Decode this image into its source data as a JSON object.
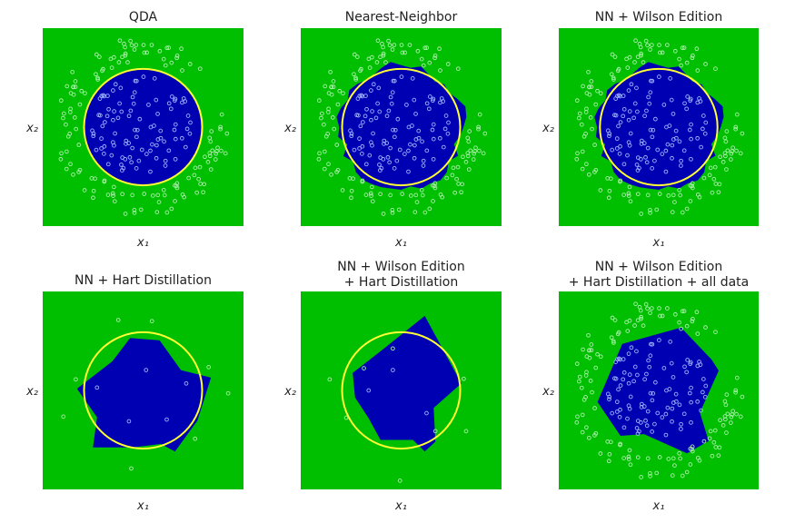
{
  "figure": {
    "colors": {
      "outer_region": "#00bf00",
      "inner_region": "#0000b3",
      "boundary": "#ffff33",
      "inner_points": "#9db4ff",
      "outer_points": "#a8f0a8"
    }
  },
  "chart_data": [
    {
      "type": "scatter",
      "title": "QDA",
      "xlabel": "x₁",
      "ylabel": "x₂",
      "region": "circle",
      "true_boundary": {
        "shape": "circle",
        "center": [
          0,
          0
        ],
        "radius": 1.0
      },
      "point_set": "all",
      "xlim": [
        -1.7,
        1.7
      ],
      "ylim": [
        -1.7,
        1.7
      ],
      "grid": false
    },
    {
      "type": "scatter",
      "title": "Nearest-Neighbor",
      "xlabel": "x₁",
      "ylabel": "x₂",
      "region": "nn_full",
      "true_boundary": {
        "shape": "circle",
        "center": [
          0,
          0
        ],
        "radius": 1.0
      },
      "point_set": "all",
      "xlim": [
        -1.7,
        1.7
      ],
      "ylim": [
        -1.7,
        1.7
      ],
      "grid": false
    },
    {
      "type": "scatter",
      "title": "NN + Wilson Edition",
      "xlabel": "x₁",
      "ylabel": "x₂",
      "region": "nn_full",
      "true_boundary": {
        "shape": "circle",
        "center": [
          0,
          0
        ],
        "radius": 1.0
      },
      "point_set": "all",
      "xlim": [
        -1.7,
        1.7
      ],
      "ylim": [
        -1.7,
        1.7
      ],
      "grid": false
    },
    {
      "type": "scatter",
      "title": "NN + Hart Distillation",
      "xlabel": "x₁",
      "ylabel": "x₂",
      "region": "hart",
      "true_boundary": {
        "shape": "circle",
        "center": [
          0,
          0
        ],
        "radius": 1.0
      },
      "point_set": "hart",
      "xlim": [
        -1.7,
        1.7
      ],
      "ylim": [
        -1.7,
        1.7
      ],
      "grid": false
    },
    {
      "type": "scatter",
      "title": "NN + Wilson Edition\n+ Hart Distillation",
      "xlabel": "x₁",
      "ylabel": "x₂",
      "region": "wilson_hart",
      "true_boundary": {
        "shape": "circle",
        "center": [
          0,
          0
        ],
        "radius": 1.0
      },
      "point_set": "wilson_hart",
      "xlim": [
        -1.7,
        1.7
      ],
      "ylim": [
        -1.7,
        1.7
      ],
      "grid": false
    },
    {
      "type": "scatter",
      "title": "NN + Wilson Edition\n+ Hart Distillation + all data",
      "xlabel": "x₁",
      "ylabel": "x₂",
      "region": "wilson_hart_all",
      "true_boundary": null,
      "point_set": "all",
      "xlim": [
        -1.7,
        1.7
      ],
      "ylim": [
        -1.7,
        1.7
      ],
      "grid": false
    }
  ]
}
